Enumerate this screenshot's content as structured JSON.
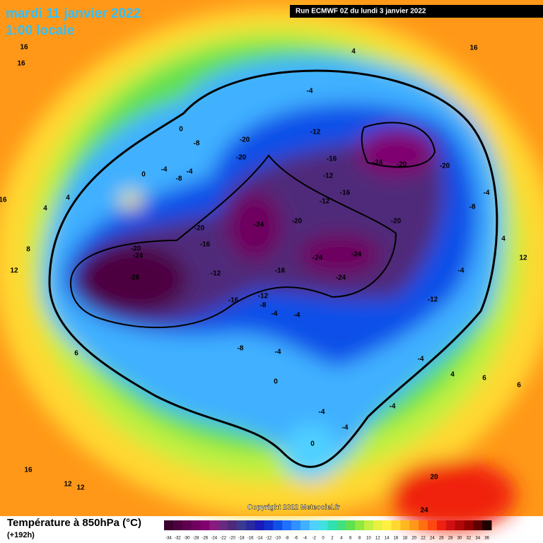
{
  "header": {
    "date": "mardi 11 janvier 2022",
    "time": "1:00 locale",
    "run": "Run ECMWF 0Z du lundi 3 janvier 2022"
  },
  "copyright": "Copyright 2022 Meteociel.fr",
  "legend": {
    "title": "Température à 850hPa (°C)",
    "lead": "(+192h)",
    "ticks": [
      -34,
      -32,
      -30,
      -28,
      -26,
      -24,
      -22,
      -20,
      -18,
      -16,
      -14,
      -12,
      -10,
      -8,
      -6,
      -4,
      -2,
      0,
      2,
      4,
      6,
      8,
      10,
      12,
      14,
      16,
      18,
      20,
      22,
      24,
      26,
      28,
      30,
      32,
      34,
      36
    ],
    "colors": [
      "#3a0030",
      "#4d0040",
      "#600050",
      "#700060",
      "#800070",
      "#8a1a80",
      "#6a2a80",
      "#502a7a",
      "#3a3a90",
      "#2a2aa0",
      "#1a1ab8",
      "#1030d0",
      "#1050e8",
      "#2070ff",
      "#3090ff",
      "#40b0ff",
      "#50d0ff",
      "#40e0e0",
      "#30e0b0",
      "#40e080",
      "#60e050",
      "#90e840",
      "#c0f040",
      "#e8f040",
      "#fff040",
      "#ffd830",
      "#ffb820",
      "#ff9818",
      "#ff7010",
      "#ff4810",
      "#f02010",
      "#d01010",
      "#b00808",
      "#900000",
      "#600000",
      "#200000"
    ]
  },
  "contour_labels": [
    -28,
    -24,
    -20,
    -24,
    -20,
    -16,
    -12,
    -16,
    -12,
    -8,
    -16,
    -20,
    -24,
    -24,
    -24,
    -20,
    -24,
    -20,
    -20,
    -12,
    -4,
    -8,
    -4,
    -12,
    -16,
    -12,
    -16,
    -12,
    -20,
    -20,
    -4,
    -8,
    -4,
    -8,
    -4,
    0,
    0,
    -8,
    -4,
    -4,
    -4,
    0,
    -4,
    -4,
    0,
    -4,
    -4,
    4,
    6,
    12,
    8,
    4,
    4,
    16,
    16,
    16,
    16,
    4,
    20,
    24,
    16,
    12,
    12,
    12,
    4,
    6,
    6
  ]
}
